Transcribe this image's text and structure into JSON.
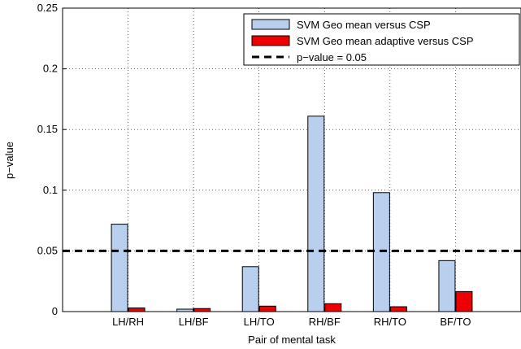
{
  "chart_data": {
    "type": "bar",
    "title": "",
    "xlabel": "Pair of mental task",
    "ylabel": "p−value",
    "categories": [
      "LH/RH",
      "LH/BF",
      "LH/TO",
      "RH/BF",
      "RH/TO",
      "BF/TO"
    ],
    "series": [
      {
        "name": "SVM Geo mean versus CSP",
        "values": [
          0.072,
          0.002,
          0.037,
          0.161,
          0.098,
          0.042
        ],
        "color": "#b8cfee"
      },
      {
        "name": "SVM Geo mean adaptive versus CSP",
        "values": [
          0.003,
          0.0025,
          0.0045,
          0.0065,
          0.004,
          0.0165
        ],
        "color": "#ee0000"
      }
    ],
    "reference_line": {
      "label": "p−value = 0.05",
      "value": 0.05,
      "style": "dashed",
      "color": "#000000"
    },
    "ylim": [
      0,
      0.25
    ],
    "yticks": [
      0,
      0.05,
      0.1,
      0.15,
      0.2,
      0.25
    ],
    "ytick_labels": [
      "0",
      "0.05",
      "0.1",
      "0.15",
      "0.2",
      "0.25"
    ],
    "grid": true,
    "legend_position": "top-right"
  }
}
